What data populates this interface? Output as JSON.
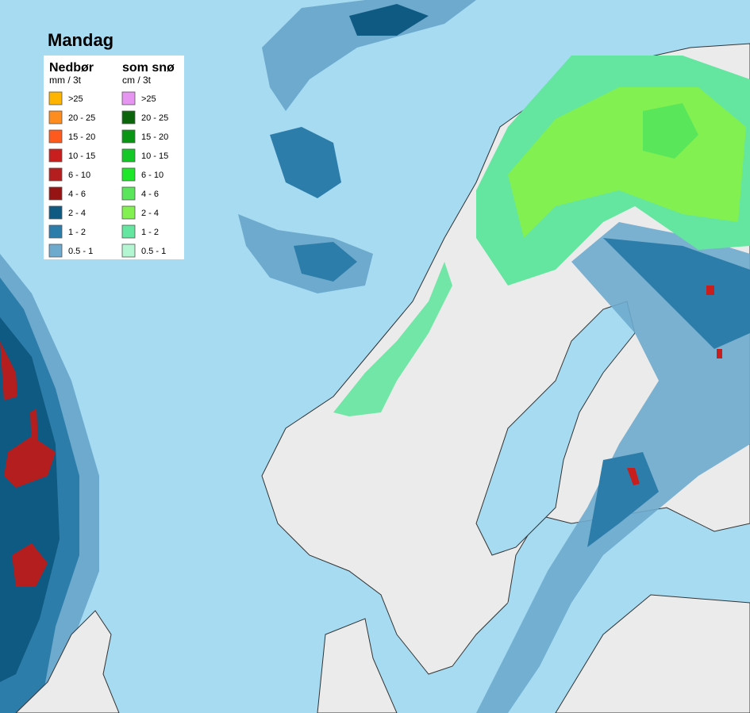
{
  "title": "Mandag",
  "legend": {
    "rain": {
      "heading": "Nedbør",
      "unit": "mm / 3t",
      "items": [
        {
          "label": ">25",
          "color": "#ffb400"
        },
        {
          "label": "20 - 25",
          "color": "#ff8c1e"
        },
        {
          "label": "15 - 20",
          "color": "#ff5a1e"
        },
        {
          "label": "10 - 15",
          "color": "#c81e1e"
        },
        {
          "label": "6 - 10",
          "color": "#b41e1e"
        },
        {
          "label": "4 - 6",
          "color": "#961414"
        },
        {
          "label": "2 - 4",
          "color": "#0f5a82"
        },
        {
          "label": "1 - 2",
          "color": "#2d7daa"
        },
        {
          "label": "0.5 - 1",
          "color": "#6eaacd"
        }
      ]
    },
    "snow": {
      "heading": "som snø",
      "unit": "cm / 3t",
      "items": [
        {
          "label": ">25",
          "color": "#e696f0"
        },
        {
          "label": "20 - 25",
          "color": "#0a640a"
        },
        {
          "label": "15 - 20",
          "color": "#0a9614"
        },
        {
          "label": "10 - 15",
          "color": "#14c828"
        },
        {
          "label": "6 - 10",
          "color": "#1ee628"
        },
        {
          "label": "4 - 6",
          "color": "#5ae65a"
        },
        {
          "label": "2 - 4",
          "color": "#82f050"
        },
        {
          "label": "1 - 2",
          "color": "#64e6a0"
        },
        {
          "label": "0.5 - 1",
          "color": "#b4f5d2"
        }
      ]
    }
  }
}
